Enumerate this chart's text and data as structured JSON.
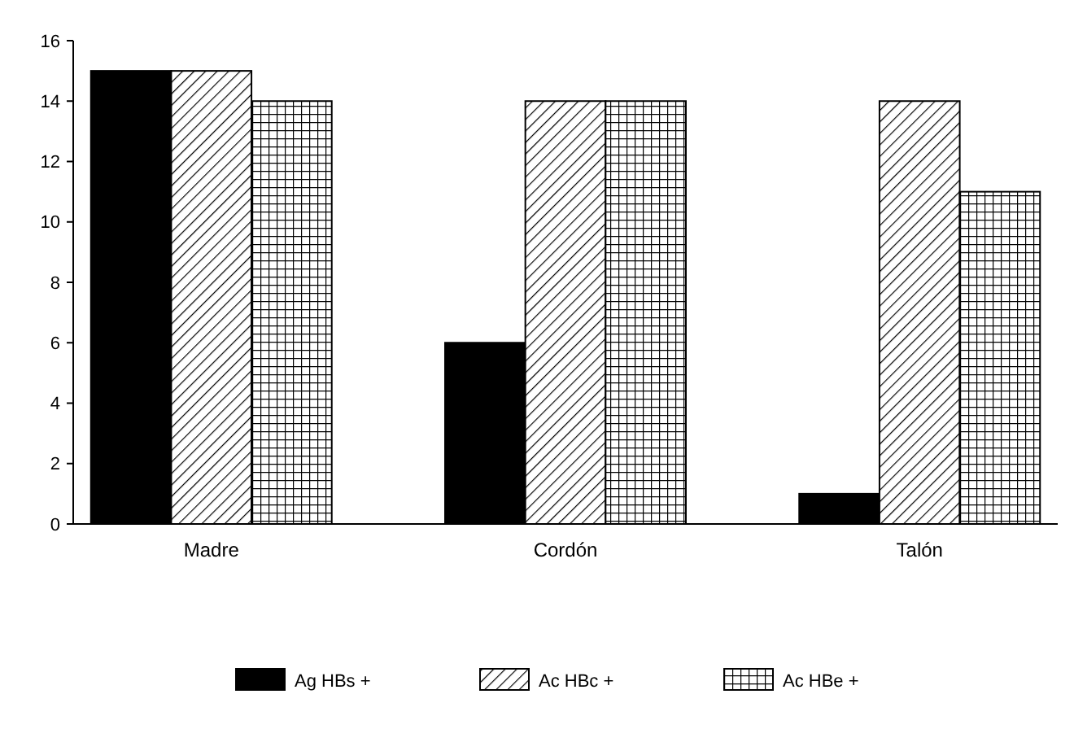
{
  "chart_data": {
    "type": "bar",
    "categories": [
      "Madre",
      "Cordón",
      "Talón"
    ],
    "series": [
      {
        "name": "Ag HBs +",
        "color": "#000000",
        "values": [
          15,
          6,
          1
        ]
      },
      {
        "name": "Ac HBc +",
        "color": "#000000",
        "values": [
          15,
          14,
          14
        ]
      },
      {
        "name": "Ac HBe +",
        "color": "#000000",
        "values": [
          14,
          14,
          11
        ]
      }
    ],
    "ylim": [
      0,
      16
    ],
    "yticks": [
      0,
      2,
      4,
      6,
      8,
      10,
      12,
      14,
      16
    ],
    "grid": false,
    "legend": "bottom"
  }
}
